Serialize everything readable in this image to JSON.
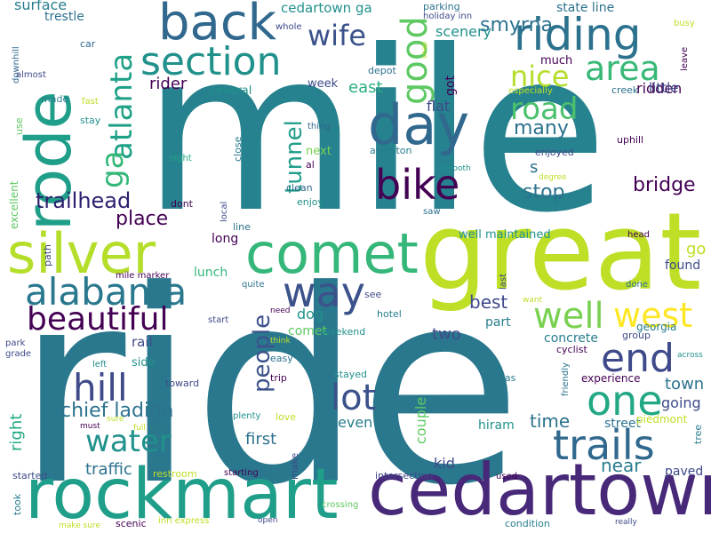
{
  "words": [
    "mile",
    "ride",
    "great",
    "rode",
    "rockmart",
    "cedartown",
    "silver",
    "comet",
    "back",
    "riding",
    "section",
    "day",
    "bike",
    "alabama",
    "way",
    "atlanta",
    "area",
    "good",
    "road",
    "nice",
    "wife",
    "well",
    "west",
    "end",
    "hill",
    "one",
    "lot",
    "trails",
    "water",
    "beautiful",
    "tunnel",
    "ga",
    "trailhead",
    "chief ladiga",
    "people",
    "place",
    "smyrna",
    "cedartown ga",
    "many",
    "stop",
    "bridge",
    "east",
    "rider",
    "scenery",
    "surface",
    "trestle",
    "state line",
    "ridden",
    "little",
    "much",
    "flat",
    "s",
    "got",
    "best",
    "dog",
    "two",
    "first",
    "traffic",
    "town",
    "going",
    "near",
    "kid",
    "paved",
    "time",
    "even",
    "go",
    "found",
    "lunch",
    "long",
    "part",
    "rail",
    "side",
    "comet",
    "concrete",
    "georgia",
    "experience",
    "right",
    "hiram",
    "couple",
    "street",
    "piedmont",
    "tree",
    "week",
    "several",
    "excellent",
    "downhill",
    "car",
    "almost",
    "made",
    "stay",
    "use",
    "fast",
    "night",
    "dont",
    "line",
    "enjoy",
    "clean",
    "al",
    "next",
    "anniston",
    "thing",
    "enjoyed",
    "smooth",
    "degree",
    "uphill",
    "creek",
    "especially",
    "depot",
    "snap",
    "whole",
    "parking",
    "holiday inn",
    "busy",
    "leave",
    "saw",
    "local",
    "close",
    "head",
    "well maintained",
    "path",
    "mile marker",
    "quite",
    "see",
    "hotel",
    "need",
    "weekend",
    "think",
    "coming",
    "done",
    "group",
    "cyclist",
    "across",
    "park",
    "grade",
    "left",
    "easy",
    "trip",
    "toward",
    "sure",
    "plenty",
    "love",
    "must",
    "full",
    "friendly",
    "stayed",
    "dallas",
    "start",
    "restroom",
    "starting",
    "make",
    "intersection",
    "used",
    "started",
    "took",
    "crossing",
    "condition",
    "make sure",
    "scenic",
    "inn express",
    "open",
    "really",
    "want",
    "last",
    "fast"
  ]
}
